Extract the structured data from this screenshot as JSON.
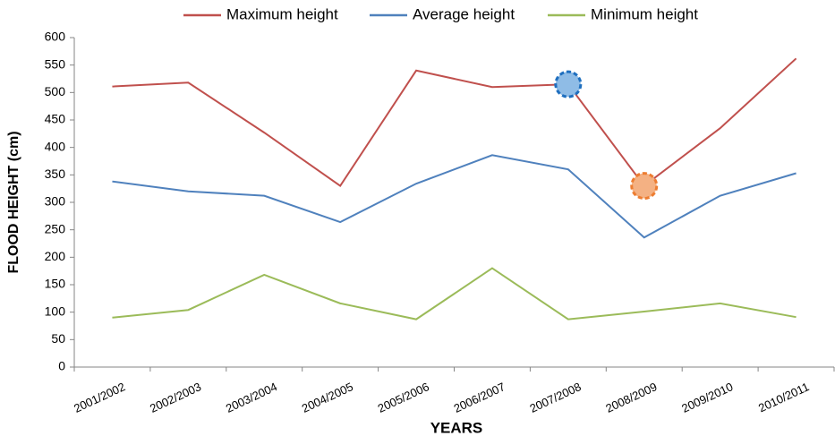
{
  "chart_data": {
    "type": "line",
    "x_label": "YEARS",
    "y_label": "FLOOD HEIGHT (cm)",
    "categories": [
      "2001/2002",
      "2002/2003",
      "2003/2004",
      "2004/2005",
      "2005/2006",
      "2006/2007",
      "2007/2008",
      "2008/2009",
      "2009/2010",
      "2010/2011"
    ],
    "series": [
      {
        "name": "Maximum height",
        "color": "#c0504d",
        "values": [
          511,
          518,
          427,
          330,
          540,
          510,
          515,
          330,
          435,
          562
        ]
      },
      {
        "name": "Average height",
        "color": "#4f81bd",
        "values": [
          338,
          320,
          312,
          264,
          334,
          386,
          360,
          236,
          312,
          353
        ]
      },
      {
        "name": "Minimum height",
        "color": "#9bbb59",
        "values": [
          90,
          104,
          168,
          116,
          87,
          180,
          87,
          101,
          116,
          91
        ]
      }
    ],
    "highlights": [
      {
        "series": 0,
        "index": 6,
        "fill": "#8fbce6",
        "stroke": "#1f6fbf"
      },
      {
        "series": 0,
        "index": 7,
        "fill": "#f4b183",
        "stroke": "#ed7d31"
      }
    ],
    "ylim": [
      0,
      600
    ],
    "yticks": [
      0,
      50,
      100,
      150,
      200,
      250,
      300,
      350,
      400,
      450,
      500,
      550,
      600
    ],
    "grid": false,
    "legend": "top"
  }
}
